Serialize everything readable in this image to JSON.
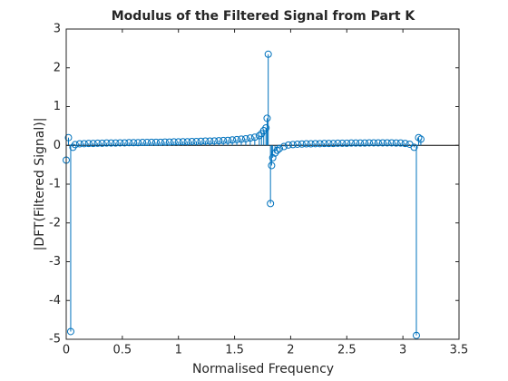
{
  "chart_data": {
    "type": "stem",
    "title": "Modulus of the Filtered Signal from Part K",
    "xlabel": "Normalised Frequency",
    "ylabel": "|DFT(Filtered Signal)|",
    "color": "#0072bd",
    "xlim": [
      0,
      3.5
    ],
    "xticks": [
      0,
      0.5,
      1,
      1.5,
      2,
      2.5,
      3,
      3.5
    ],
    "ylim": [
      -5,
      3
    ],
    "yticks": [
      -5,
      -4,
      -3,
      -2,
      -1,
      0,
      1,
      2,
      3
    ],
    "x": [
      0,
      0.02,
      0.04,
      0.06,
      0.08,
      0.12,
      0.16,
      0.2,
      0.24,
      0.28,
      0.32,
      0.36,
      0.4,
      0.44,
      0.48,
      0.52,
      0.56,
      0.6,
      0.64,
      0.68,
      0.72,
      0.76,
      0.8,
      0.84,
      0.88,
      0.92,
      0.96,
      1,
      1.04,
      1.08,
      1.12,
      1.16,
      1.2,
      1.24,
      1.28,
      1.32,
      1.36,
      1.4,
      1.44,
      1.48,
      1.52,
      1.56,
      1.6,
      1.64,
      1.68,
      1.72,
      1.74,
      1.76,
      1.78,
      1.79,
      1.8,
      1.82,
      1.83,
      1.84,
      1.86,
      1.88,
      1.9,
      1.94,
      1.98,
      2.02,
      2.06,
      2.1,
      2.14,
      2.18,
      2.22,
      2.26,
      2.3,
      2.34,
      2.38,
      2.42,
      2.46,
      2.5,
      2.54,
      2.58,
      2.62,
      2.66,
      2.7,
      2.74,
      2.78,
      2.82,
      2.86,
      2.9,
      2.94,
      2.98,
      3.02,
      3.06,
      3.1,
      3.12,
      3.14,
      3.16
    ],
    "values": [
      -0.38,
      0.2,
      -4.8,
      -0.05,
      0.02,
      0.04,
      0.045,
      0.05,
      0.05,
      0.055,
      0.055,
      0.06,
      0.06,
      0.06,
      0.065,
      0.065,
      0.07,
      0.07,
      0.07,
      0.075,
      0.075,
      0.08,
      0.08,
      0.08,
      0.085,
      0.085,
      0.09,
      0.09,
      0.095,
      0.095,
      0.1,
      0.1,
      0.105,
      0.11,
      0.11,
      0.115,
      0.12,
      0.125,
      0.13,
      0.14,
      0.15,
      0.16,
      0.17,
      0.19,
      0.21,
      0.25,
      0.3,
      0.38,
      0.45,
      0.7,
      2.35,
      -1.5,
      -0.52,
      -0.32,
      -0.2,
      -0.13,
      -0.08,
      -0.03,
      0.01,
      0.02,
      0.03,
      0.035,
      0.04,
      0.04,
      0.045,
      0.045,
      0.05,
      0.05,
      0.05,
      0.055,
      0.055,
      0.055,
      0.06,
      0.06,
      0.06,
      0.06,
      0.065,
      0.065,
      0.065,
      0.065,
      0.065,
      0.065,
      0.06,
      0.06,
      0.05,
      0.03,
      -0.05,
      -4.9,
      0.2,
      0.16
    ]
  }
}
